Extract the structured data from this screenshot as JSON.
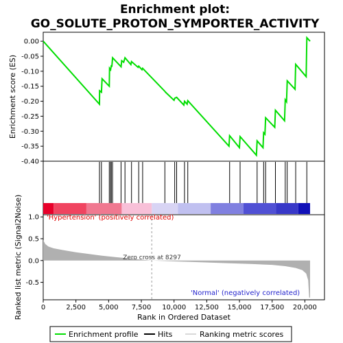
{
  "chart_data": {
    "title_line1": "Enrichment plot:",
    "title_line2": "GO_SOLUTE_PROTON_SYMPORTER_ACTIVITY",
    "es_panel": {
      "type": "line",
      "ylabel": "Enrichment score (ES)",
      "ylim": [
        -0.4,
        0.03
      ],
      "yticks": [
        0.0,
        -0.05,
        -0.1,
        -0.15,
        -0.2,
        -0.25,
        -0.3,
        -0.35,
        -0.4
      ],
      "ytick_labels": [
        "0.00",
        "-0.05",
        "-0.10",
        "-0.15",
        "-0.20",
        "-0.25",
        "-0.30",
        "-0.35",
        "-0.40"
      ],
      "line_color": "#00dd00",
      "profile": [
        [
          0,
          0.0
        ],
        [
          4300,
          -0.21
        ],
        [
          4310,
          -0.165
        ],
        [
          4450,
          -0.17
        ],
        [
          4500,
          -0.125
        ],
        [
          5050,
          -0.15
        ],
        [
          5070,
          -0.09
        ],
        [
          5150,
          -0.095
        ],
        [
          5200,
          -0.082
        ],
        [
          5250,
          -0.083
        ],
        [
          5300,
          -0.055
        ],
        [
          5950,
          -0.085
        ],
        [
          6000,
          -0.065
        ],
        [
          6150,
          -0.07
        ],
        [
          6250,
          -0.055
        ],
        [
          6700,
          -0.078
        ],
        [
          6750,
          -0.068
        ],
        [
          7250,
          -0.087
        ],
        [
          7300,
          -0.083
        ],
        [
          7550,
          -0.095
        ],
        [
          7600,
          -0.09
        ],
        [
          9300,
          -0.167
        ],
        [
          9350,
          -0.17
        ],
        [
          10000,
          -0.197
        ],
        [
          10050,
          -0.19
        ],
        [
          10200,
          -0.187
        ],
        [
          10750,
          -0.213
        ],
        [
          10800,
          -0.2
        ],
        [
          11000,
          -0.21
        ],
        [
          11050,
          -0.198
        ],
        [
          14200,
          -0.35
        ],
        [
          14250,
          -0.315
        ],
        [
          15000,
          -0.355
        ],
        [
          15050,
          -0.318
        ],
        [
          16300,
          -0.38
        ],
        [
          16350,
          -0.332
        ],
        [
          16800,
          -0.355
        ],
        [
          16850,
          -0.305
        ],
        [
          16950,
          -0.31
        ],
        [
          17000,
          -0.255
        ],
        [
          17700,
          -0.287
        ],
        [
          17750,
          -0.23
        ],
        [
          18450,
          -0.265
        ],
        [
          18500,
          -0.195
        ],
        [
          18600,
          -0.202
        ],
        [
          18650,
          -0.132
        ],
        [
          19250,
          -0.16
        ],
        [
          19300,
          -0.077
        ],
        [
          20100,
          -0.118
        ],
        [
          20150,
          0.012
        ],
        [
          20400,
          0.0
        ]
      ]
    },
    "hits": [
      4300,
      4450,
      5050,
      5150,
      5200,
      5300,
      5950,
      6250,
      6750,
      7300,
      7600,
      9300,
      10050,
      10200,
      10800,
      11050,
      14250,
      15050,
      16350,
      16850,
      17000,
      17750,
      18500,
      18650,
      19300,
      20150
    ],
    "metric_panel": {
      "type": "area",
      "ylabel": "Ranked list metric (Signal2Noise)",
      "ylim": [
        -0.9,
        1.05
      ],
      "yticks": [
        1.0,
        0.5,
        0.0,
        -0.5
      ],
      "ytick_labels": [
        "1.0",
        "0.5",
        "0.0",
        "-0.5"
      ],
      "fill_color": "#b0b0b0",
      "profile": [
        [
          0,
          0.47
        ],
        [
          150,
          0.38
        ],
        [
          400,
          0.32
        ],
        [
          800,
          0.28
        ],
        [
          1500,
          0.24
        ],
        [
          2500,
          0.19
        ],
        [
          3500,
          0.15
        ],
        [
          4500,
          0.11
        ],
        [
          5500,
          0.08
        ],
        [
          6500,
          0.05
        ],
        [
          7500,
          0.02
        ],
        [
          8297,
          0.0
        ],
        [
          10000,
          -0.02
        ],
        [
          12000,
          -0.04
        ],
        [
          14000,
          -0.06
        ],
        [
          16000,
          -0.08
        ],
        [
          17500,
          -0.1
        ],
        [
          18500,
          -0.13
        ],
        [
          19300,
          -0.17
        ],
        [
          19800,
          -0.22
        ],
        [
          20100,
          -0.3
        ],
        [
          20250,
          -0.45
        ],
        [
          20330,
          -0.85
        ],
        [
          20400,
          -0.85
        ]
      ]
    },
    "xaxis": {
      "xlabel": "Rank in Ordered Dataset",
      "xlim": [
        0,
        21500
      ],
      "xticks": [
        0,
        2500,
        5000,
        7500,
        10000,
        12500,
        15000,
        17500,
        20000
      ],
      "xtick_labels": [
        "0",
        "2,500",
        "5,000",
        "7,500",
        "10,000",
        "12,500",
        "15,000",
        "17,500",
        "20,000"
      ],
      "max_rank": 20400
    },
    "zero_cross": {
      "text": "Zero cross at 8297",
      "rank": 8297
    },
    "label_positive": "'Hypertension' (positively correlated)",
    "label_negative": "'Normal' (negatively correlated)",
    "colorbar": [
      {
        "to": 800,
        "color": "#e8002a"
      },
      {
        "to": 3300,
        "color": "#f04460"
      },
      {
        "to": 6000,
        "color": "#f07890"
      },
      {
        "to": 8300,
        "color": "#f8c0d8"
      },
      {
        "to": 10300,
        "color": "#d8d4f4"
      },
      {
        "to": 12800,
        "color": "#c0c0f0"
      },
      {
        "to": 15300,
        "color": "#8080e0"
      },
      {
        "to": 17800,
        "color": "#5050d4"
      },
      {
        "to": 19500,
        "color": "#3838c8"
      },
      {
        "to": 20400,
        "color": "#1010b8"
      }
    ],
    "legend": {
      "items": [
        {
          "label": "Enrichment profile",
          "color": "#00dd00",
          "kind": "line"
        },
        {
          "label": "Hits",
          "color": "#000000",
          "kind": "line"
        },
        {
          "label": "Ranking metric scores",
          "color": "#b0b0b0",
          "kind": "line"
        }
      ]
    }
  }
}
